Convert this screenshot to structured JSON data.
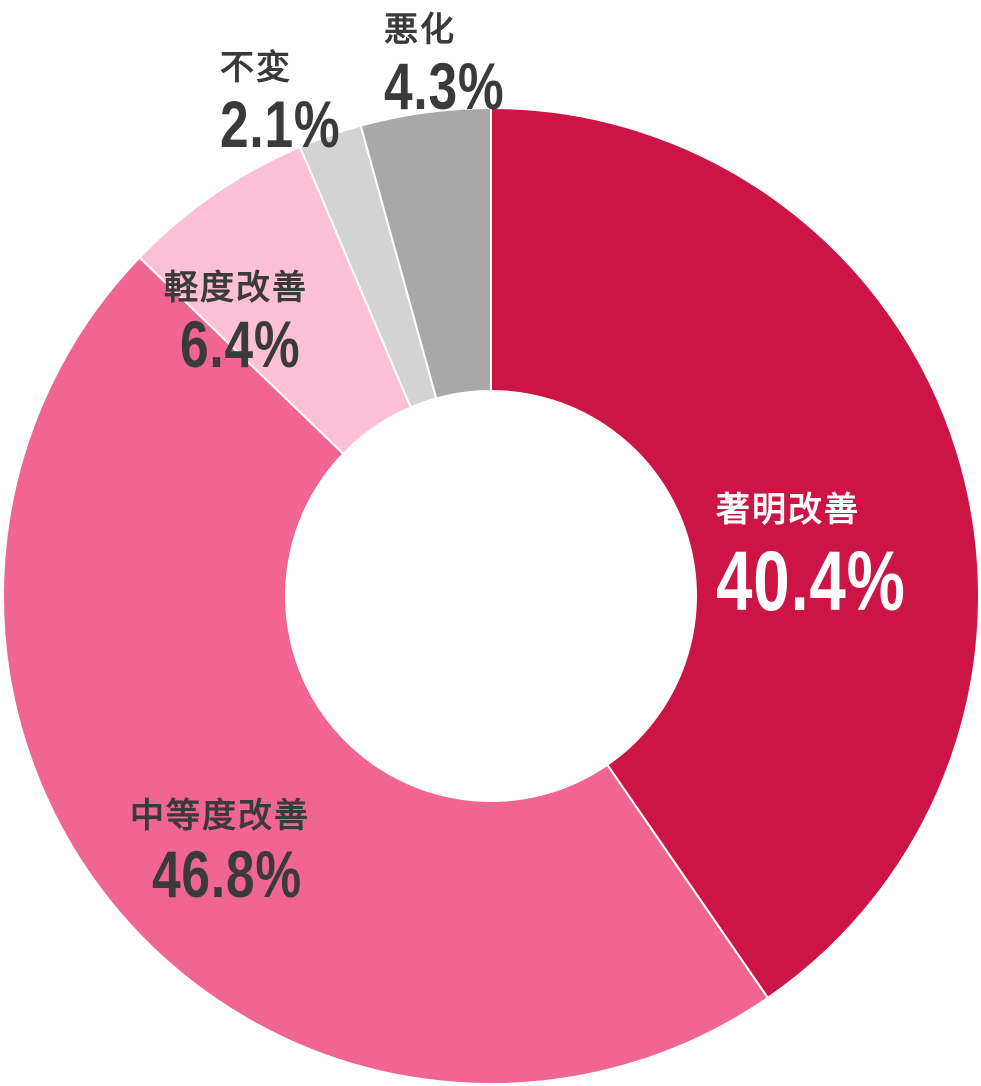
{
  "chart_data": {
    "type": "pie",
    "subtype": "donut",
    "start": "top",
    "direction": "clockwise",
    "slices": [
      {
        "label": "著明改善",
        "value": 40.4,
        "display": "40.4%",
        "color": "#CC1544"
      },
      {
        "label": "中等度改善",
        "value": 46.8,
        "display": "46.8%",
        "color": "#F06591"
      },
      {
        "label": "軽度改善",
        "value": 6.4,
        "display": "6.4%",
        "color": "#FDC0D6"
      },
      {
        "label": "不変",
        "value": 2.1,
        "display": "2.1%",
        "color": "#D3D3D3"
      },
      {
        "label": "悪化",
        "value": 4.3,
        "display": "4.3%",
        "color": "#A8A8A8"
      }
    ],
    "legend": "none"
  }
}
